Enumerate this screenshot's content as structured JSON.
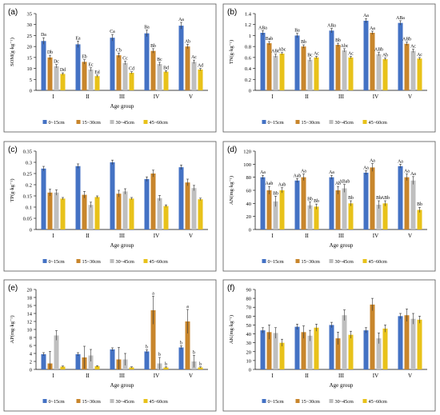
{
  "legend": [
    "0~15cm",
    "15~30cm",
    "30~45cm",
    "45~60cm"
  ],
  "colors": [
    "#4472C4",
    "#C8862C",
    "#BFBFBF",
    "#E8C21A"
  ],
  "chart_data": [
    {
      "type": "bar",
      "panel": "(a)",
      "ylabel": "SOM(g·kg⁻¹)",
      "xlabel": "Age group",
      "ylim": [
        0,
        35
      ],
      "yticks": [
        0,
        5,
        10,
        15,
        20,
        25,
        30,
        35
      ],
      "categories": [
        "I",
        "II",
        "III",
        "IV",
        "V"
      ],
      "series": [
        {
          "name": "0~15cm",
          "values": [
            22.5,
            21,
            24,
            26,
            29.5
          ],
          "err": [
            1.5,
            1.5,
            1.5,
            1.5,
            1.5
          ],
          "labels": [
            "Da",
            "Ea",
            "Ca",
            "Ba",
            "Aa"
          ]
        },
        {
          "name": "15~30cm",
          "values": [
            15,
            13,
            16,
            18,
            20
          ],
          "err": [
            1,
            1,
            1,
            1,
            1
          ],
          "labels": [
            "Db",
            "Eb",
            "Cb",
            "Bb",
            "Ab"
          ]
        },
        {
          "name": "30~45cm",
          "values": [
            11,
            9.5,
            12.5,
            12,
            13
          ],
          "err": [
            0.8,
            0.8,
            0.8,
            0.8,
            0.8
          ],
          "labels": [
            "Dc",
            "Ec",
            "Cc",
            "Bc",
            "Ac"
          ]
        },
        {
          "name": "45~60cm",
          "values": [
            7.5,
            6.5,
            8,
            8.5,
            9.5
          ],
          "err": [
            0.5,
            0.5,
            0.5,
            0.5,
            0.5
          ],
          "labels": [
            "Dd",
            "Ed",
            "Cd",
            "Bd",
            "Ad"
          ]
        }
      ]
    },
    {
      "type": "bar",
      "panel": "(b)",
      "ylabel": "TN(g·kg⁻¹)",
      "xlabel": "",
      "ylim": [
        0,
        1.4
      ],
      "yticks": [
        0,
        0.2,
        0.4,
        0.6,
        0.8,
        1,
        1.2,
        1.4
      ],
      "categories": [
        "I",
        "II",
        "III",
        "IV",
        "V"
      ],
      "series": [
        {
          "name": "0~15cm",
          "values": [
            1.05,
            1.0,
            1.09,
            1.27,
            1.23
          ],
          "err": [
            0.04,
            0.04,
            0.04,
            0.04,
            0.04
          ],
          "labels": [
            "ABa",
            "Ba",
            "ABa",
            "Aa",
            "ABa"
          ]
        },
        {
          "name": "15~30cm",
          "values": [
            0.86,
            0.8,
            0.83,
            1.05,
            0.85
          ],
          "err": [
            0.03,
            0.03,
            0.03,
            0.03,
            0.03
          ],
          "labels": [
            "Bab",
            "Bb",
            "Bb",
            "Aa",
            "ABb"
          ]
        },
        {
          "name": "30~45cm",
          "values": [
            0.63,
            0.56,
            0.73,
            0.66,
            0.72
          ],
          "err": [
            0.03,
            0.03,
            0.03,
            0.03,
            0.03
          ],
          "labels": [
            "ABc",
            "Bc",
            "Abc",
            "ABb",
            "Ac"
          ]
        },
        {
          "name": "45~60cm",
          "values": [
            0.67,
            0.6,
            0.6,
            0.57,
            0.58
          ],
          "err": [
            0.02,
            0.02,
            0.02,
            0.02,
            0.02
          ],
          "labels": [
            "Abc",
            "Ac",
            "Ac",
            "Ab",
            "Ac"
          ]
        }
      ]
    },
    {
      "type": "bar",
      "panel": "(c)",
      "ylabel": "TP(g·kg⁻¹)",
      "xlabel": "Age group",
      "ylim": [
        0,
        0.35
      ],
      "yticks": [
        0,
        0.05,
        0.1,
        0.15,
        0.2,
        0.25,
        0.3,
        0.35
      ],
      "categories": [
        "I",
        "II",
        "III",
        "IV",
        "V"
      ],
      "series": [
        {
          "name": "0~15cm",
          "values": [
            0.272,
            0.283,
            0.3,
            0.225,
            0.278
          ],
          "err": [
            0.01,
            0.01,
            0.01,
            0.01,
            0.01
          ],
          "labels": []
        },
        {
          "name": "15~30cm",
          "values": [
            0.165,
            0.155,
            0.16,
            0.25,
            0.21
          ],
          "err": [
            0.015,
            0.015,
            0.015,
            0.015,
            0.015
          ],
          "labels": []
        },
        {
          "name": "30~45cm",
          "values": [
            0.165,
            0.11,
            0.17,
            0.14,
            0.185
          ],
          "err": [
            0.012,
            0.012,
            0.012,
            0.012,
            0.012
          ],
          "labels": []
        },
        {
          "name": "45~60cm",
          "values": [
            0.138,
            0.145,
            0.138,
            0.105,
            0.135
          ],
          "err": [
            0.005,
            0.005,
            0.005,
            0.005,
            0.005
          ],
          "labels": []
        }
      ]
    },
    {
      "type": "bar",
      "panel": "(d)",
      "ylabel": "AN(mg·kg⁻¹)",
      "xlabel": "Age group",
      "ylim": [
        0,
        120
      ],
      "yticks": [
        0,
        20,
        40,
        60,
        80,
        100,
        120
      ],
      "categories": [
        "I",
        "II",
        "III",
        "IV",
        "V"
      ],
      "series": [
        {
          "name": "0~15cm",
          "values": [
            80,
            75,
            80,
            87,
            97
          ],
          "err": [
            3,
            3,
            3,
            3,
            3
          ],
          "labels": [
            "Aa",
            "Aab",
            "Aa",
            "Aa",
            "Aa"
          ]
        },
        {
          "name": "15~30cm",
          "values": [
            60,
            80,
            60,
            95,
            80
          ],
          "err": [
            6,
            5,
            6,
            6,
            5
          ],
          "labels": [
            "Aab",
            "Aa",
            "Ab",
            "Aa",
            "Aa"
          ]
        },
        {
          "name": "30~45cm",
          "values": [
            43,
            37,
            63,
            38,
            75
          ],
          "err": [
            8,
            5,
            6,
            6,
            6
          ],
          "labels": [
            "Bb",
            "Bb",
            "ABab",
            "Bb",
            "Aa"
          ]
        },
        {
          "name": "45~60cm",
          "values": [
            60,
            35,
            40,
            40,
            30
          ],
          "err": [
            4,
            4,
            4,
            4,
            4
          ],
          "labels": [
            "Aab",
            "Bb",
            "Bb",
            "ABb",
            "Bb"
          ]
        }
      ]
    },
    {
      "type": "bar",
      "panel": "(e)",
      "ylabel": "AP(mg·kg⁻¹)",
      "xlabel": "Age group",
      "ylim": [
        0,
        20
      ],
      "yticks": [
        0,
        2,
        4,
        6,
        8,
        10,
        12,
        14,
        16,
        18,
        20
      ],
      "categories": [
        "I",
        "II",
        "III",
        "IV",
        "V"
      ],
      "series": [
        {
          "name": "0~15cm",
          "values": [
            3.8,
            3.8,
            5,
            4.5,
            5.5
          ],
          "err": [
            0.4,
            0.4,
            0.4,
            0.4,
            0.4
          ],
          "labels": [
            "",
            "",
            "",
            "b",
            "b"
          ]
        },
        {
          "name": "15~30cm",
          "values": [
            1.5,
            3,
            2.5,
            14.8,
            12
          ],
          "err": [
            3,
            2.8,
            3,
            3.5,
            3
          ],
          "labels": [
            "",
            "",
            "",
            "a",
            "a"
          ]
        },
        {
          "name": "30~45cm",
          "values": [
            8.5,
            3.5,
            2.5,
            1.5,
            2
          ],
          "err": [
            1.2,
            1.5,
            1.5,
            1.5,
            1.5
          ],
          "labels": [
            "",
            "",
            "",
            "b",
            "b"
          ]
        },
        {
          "name": "45~60cm",
          "values": [
            0.7,
            0.8,
            0.5,
            0.5,
            0.5
          ],
          "err": [
            0.15,
            0.15,
            0.15,
            0.15,
            0.15
          ],
          "labels": [
            "",
            "",
            "",
            "b",
            "b"
          ]
        }
      ]
    },
    {
      "type": "bar",
      "panel": "(f)",
      "ylabel": "AK(mg·kg⁻¹)",
      "xlabel": "Age group",
      "ylim": [
        0,
        90
      ],
      "yticks": [
        0,
        10,
        20,
        30,
        40,
        50,
        60,
        70,
        80,
        90
      ],
      "categories": [
        "I",
        "II",
        "III",
        "IV",
        "V"
      ],
      "series": [
        {
          "name": "0~15cm",
          "values": [
            44,
            48,
            50,
            44,
            60
          ],
          "err": [
            3,
            3,
            3,
            3,
            3
          ],
          "labels": []
        },
        {
          "name": "15~30cm",
          "values": [
            42,
            42,
            35,
            73,
            61
          ],
          "err": [
            8,
            7,
            7,
            7,
            7
          ],
          "labels": []
        },
        {
          "name": "30~45cm",
          "values": [
            41,
            38,
            61,
            35,
            57
          ],
          "err": [
            6,
            6,
            6,
            6,
            6
          ],
          "labels": []
        },
        {
          "name": "45~60cm",
          "values": [
            30,
            47,
            39,
            46,
            56
          ],
          "err": [
            4,
            4,
            4,
            4,
            4
          ],
          "labels": []
        }
      ]
    }
  ]
}
